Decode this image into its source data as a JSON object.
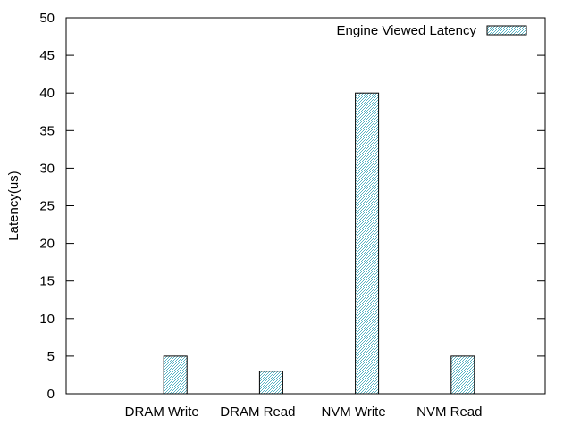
{
  "chart_data": {
    "type": "bar",
    "categories": [
      "DRAM Write",
      "DRAM Read",
      "NVM Write",
      "NVM Read"
    ],
    "series": [
      {
        "name": "Engine Viewed Latency",
        "values": [
          5,
          3,
          40,
          5
        ],
        "color": "#b8e0e8",
        "pattern": "checker-cyan-dot"
      }
    ],
    "ylabel": "Latency(us)",
    "xlabel": "",
    "ylim": [
      0,
      50
    ],
    "yticks": [
      0,
      5,
      10,
      15,
      20,
      25,
      30,
      35,
      40,
      45,
      50
    ],
    "legend_position": "top-right",
    "grid": false
  }
}
